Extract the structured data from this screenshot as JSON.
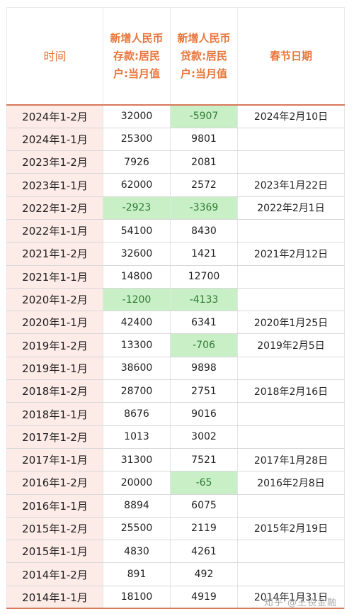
{
  "headers": {
    "time": "时间",
    "deposit": [
      "新增人民币",
      "存款:居民",
      "户:当月值"
    ],
    "loan": [
      "新增人民币",
      "贷款:居民",
      "户:当月值"
    ],
    "spring_festival": "春节日期"
  },
  "rows": [
    {
      "time": "2024年1-2月",
      "deposit": "32000",
      "loan": "-5907",
      "date": "2024年2月10日"
    },
    {
      "time": "2024年1-1月",
      "deposit": "25300",
      "loan": "9801",
      "date": ""
    },
    {
      "time": "2023年1-2月",
      "deposit": "7926",
      "loan": "2081",
      "date": ""
    },
    {
      "time": "2023年1-1月",
      "deposit": "62000",
      "loan": "2572",
      "date": "2023年1月22日"
    },
    {
      "time": "2022年1-2月",
      "deposit": "-2923",
      "loan": "-3369",
      "date": "2022年2月1日"
    },
    {
      "time": "2022年1-1月",
      "deposit": "54100",
      "loan": "8430",
      "date": ""
    },
    {
      "time": "2021年1-2月",
      "deposit": "32600",
      "loan": "1421",
      "date": "2021年2月12日"
    },
    {
      "time": "2021年1-1月",
      "deposit": "14800",
      "loan": "12700",
      "date": ""
    },
    {
      "time": "2020年1-2月",
      "deposit": "-1200",
      "loan": "-4133",
      "date": ""
    },
    {
      "time": "2020年1-1月",
      "deposit": "42400",
      "loan": "6341",
      "date": "2020年1月25日"
    },
    {
      "time": "2019年1-2月",
      "deposit": "13300",
      "loan": "-706",
      "date": "2019年2月5日"
    },
    {
      "time": "2019年1-1月",
      "deposit": "38600",
      "loan": "9898",
      "date": ""
    },
    {
      "time": "2018年1-2月",
      "deposit": "28700",
      "loan": "2751",
      "date": "2018年2月16日"
    },
    {
      "time": "2018年1-1月",
      "deposit": "8676",
      "loan": "9016",
      "date": ""
    },
    {
      "time": "2017年1-2月",
      "deposit": "1013",
      "loan": "3002",
      "date": ""
    },
    {
      "time": "2017年1-1月",
      "deposit": "31300",
      "loan": "7521",
      "date": "2017年1月28日"
    },
    {
      "time": "2016年1-2月",
      "deposit": "20000",
      "loan": "-65",
      "date": "2016年2月8日"
    },
    {
      "time": "2016年1-1月",
      "deposit": "8894",
      "loan": "6075",
      "date": ""
    },
    {
      "time": "2015年1-2月",
      "deposit": "25500",
      "loan": "2119",
      "date": "2015年2月19日"
    },
    {
      "time": "2015年1-1月",
      "deposit": "4830",
      "loan": "4261",
      "date": ""
    },
    {
      "time": "2014年1-2月",
      "deposit": "891",
      "loan": "492",
      "date": ""
    },
    {
      "time": "2014年1-1月",
      "deposit": "18100",
      "loan": "4919",
      "date": "2014年1月31日"
    }
  ],
  "colors": {
    "header_text": "#e8763b",
    "time_cell_bg": "#fcebe6",
    "negative_bg": "#c9efc7",
    "negative_text": "#2e7d32",
    "rule": "#d9785a"
  },
  "watermark": "知乎 @王锐金融"
}
